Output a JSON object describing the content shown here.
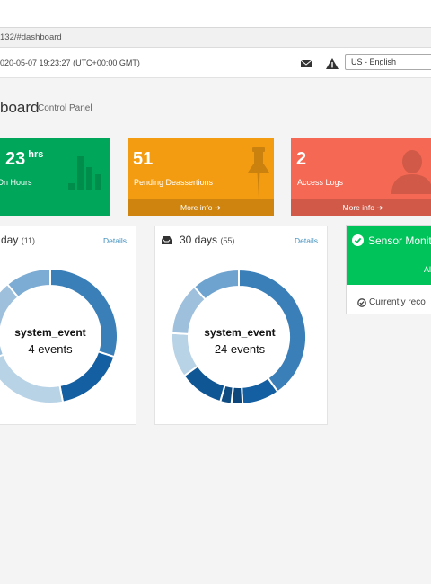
{
  "browser": {
    "url": "132/#dashboard"
  },
  "header": {
    "datetime": "020-05-07 19:23:27 (UTC+00:00 GMT)",
    "language": "US - English",
    "icons": [
      "envelope-icon",
      "warning-icon"
    ]
  },
  "page": {
    "title": "board",
    "subtitle": "Control Panel"
  },
  "stats": [
    {
      "value": "23",
      "unit": "hrs",
      "label": "On Hours",
      "color": "#00a65a",
      "icon": "bar-chart-icon"
    },
    {
      "value": "51",
      "label": "Pending Deassertions",
      "footer": "More info",
      "color": "#f39c12",
      "icon": "pushpin-icon"
    },
    {
      "value": "2",
      "label": "Access Logs",
      "footer": "More info",
      "color": "#f56954",
      "icon": "user-icon"
    }
  ],
  "panels": [
    {
      "title": "day",
      "count": "(11)",
      "details": "Details",
      "center_label": "system_event",
      "center_value": "4 events",
      "segments": [
        {
          "value": 30,
          "color": "#3a7fb8"
        },
        {
          "value": 17,
          "color": "#145fa2"
        },
        {
          "value": 22,
          "color": "#b8d2e6"
        },
        {
          "value": 20,
          "color": "#9ec0dd"
        },
        {
          "value": 11,
          "color": "#7cabd3"
        }
      ]
    },
    {
      "title": "30 days",
      "count": "(55)",
      "details": "Details",
      "center_label": "system_event",
      "center_value": "24 events",
      "segments": [
        {
          "value": 45,
          "color": "#3a7fb8"
        },
        {
          "value": 10,
          "color": "#145fa2"
        },
        {
          "value": 3,
          "color": "#0c467a"
        },
        {
          "value": 3,
          "color": "#0e4c82"
        },
        {
          "value": 12,
          "color": "#0f5694"
        },
        {
          "value": 12,
          "color": "#b8d2e6"
        },
        {
          "value": 14,
          "color": "#9ec0dd"
        },
        {
          "value": 13,
          "color": "#6fa3cf"
        }
      ]
    }
  ],
  "sensor": {
    "title": "Sensor Monit",
    "status": "Al",
    "footer": "Currently reco"
  }
}
